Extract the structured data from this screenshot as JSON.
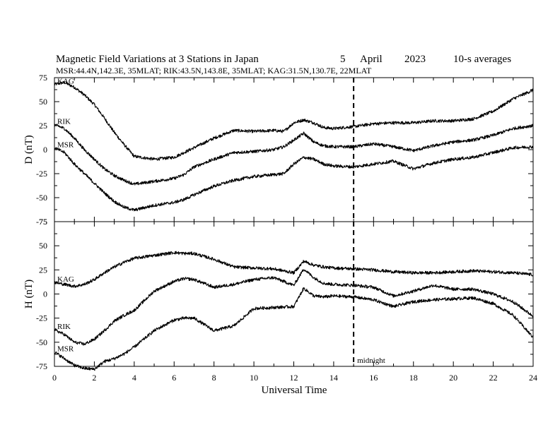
{
  "header": {
    "title_main": "Magnetic Field Variations at 3 Stations in Japan",
    "day": "5",
    "month": "April",
    "year": "2023",
    "averaging": "10-s averages",
    "stations_line": "MSR:44.4N,142.3E, 35MLAT;  RIK:43.5N,143.8E, 35MLAT;  KAG:31.5N,130.7E, 22MLAT"
  },
  "annotation": {
    "midnight_label": "midnight",
    "midnight_ut": 15
  },
  "chart_data": {
    "type": "line",
    "xlabel": "Universal Time",
    "xlim": [
      0,
      24
    ],
    "x_ticks": [
      "0",
      "2",
      "4",
      "6",
      "8",
      "10",
      "12",
      "14",
      "16",
      "18",
      "20",
      "22",
      "24"
    ],
    "panels": [
      {
        "ylabel": "D (nT)",
        "ylim": [
          -75,
          75
        ],
        "y_ticks": [
          "75",
          "50",
          "25",
          "0",
          "-25",
          "-50",
          "-75"
        ],
        "series": [
          {
            "name": "KAG",
            "x": [
              0,
              0.5,
              1,
              1.5,
              2,
              2.5,
              3,
              3.5,
              4,
              5,
              6,
              6.5,
              7,
              8,
              9,
              10,
              11,
              11.5,
              12,
              12.5,
              13,
              13.5,
              14,
              15,
              16,
              17,
              18,
              19,
              20,
              21,
              22,
              23,
              24
            ],
            "y": [
              68,
              70,
              65,
              57,
              47,
              33,
              18,
              5,
              -7,
              -10,
              -8,
              -3,
              2,
              12,
              20,
              19,
              20,
              19,
              28,
              31,
              28,
              23,
              22,
              24,
              27,
              28,
              28,
              30,
              30,
              32,
              40,
              53,
              62
            ]
          },
          {
            "name": "RIK",
            "x": [
              0,
              0.5,
              1,
              1.5,
              2,
              2.5,
              3,
              3.5,
              4,
              5,
              6,
              6.5,
              7,
              8,
              9,
              10,
              11,
              11.5,
              12,
              12.5,
              13,
              13.5,
              14,
              15,
              16,
              17,
              18,
              19,
              20,
              21,
              22,
              23,
              24
            ],
            "y": [
              26,
              22,
              12,
              0,
              -10,
              -20,
              -27,
              -32,
              -36,
              -33,
              -30,
              -26,
              -18,
              -10,
              -3,
              -2,
              0,
              3,
              10,
              17,
              8,
              4,
              3,
              3,
              6,
              3,
              -1,
              4,
              8,
              10,
              15,
              22,
              25
            ]
          },
          {
            "name": "MSR",
            "x": [
              0,
              0.5,
              1,
              1.5,
              2,
              2.5,
              3,
              3.5,
              4,
              5,
              6,
              6.5,
              7,
              8,
              9,
              10,
              11,
              11.5,
              12,
              12.5,
              13,
              13.5,
              14,
              15,
              16,
              17,
              18,
              19,
              20,
              21,
              22,
              23,
              24
            ],
            "y": [
              2,
              -3,
              -15,
              -25,
              -35,
              -45,
              -54,
              -60,
              -63,
              -58,
              -55,
              -52,
              -47,
              -38,
              -32,
              -28,
              -26,
              -25,
              -15,
              -8,
              -10,
              -15,
              -17,
              -18,
              -15,
              -12,
              -20,
              -14,
              -10,
              -8,
              -3,
              2,
              3
            ]
          }
        ]
      },
      {
        "ylabel": "H (nT)",
        "ylim": [
          -75,
          75
        ],
        "y_ticks": [
          "75",
          "50",
          "25",
          "0",
          "-25",
          "-50",
          "-75"
        ],
        "series": [
          {
            "name": "KAG",
            "x": [
              0,
              0.5,
              1,
              1.5,
              2,
              2.5,
              3,
              3.5,
              4,
              5,
              6,
              6.5,
              7,
              8,
              9,
              10,
              11,
              12,
              12.5,
              13,
              13.5,
              14,
              15,
              16,
              17,
              18,
              19,
              20,
              21,
              22,
              23,
              24
            ],
            "y": [
              12,
              10,
              8,
              10,
              15,
              22,
              28,
              33,
              37,
              40,
              43,
              42,
              42,
              36,
              28,
              27,
              26,
              22,
              34,
              30,
              28,
              27,
              26,
              25,
              23,
              22,
              22,
              23,
              24,
              23,
              22,
              20
            ]
          },
          {
            "name": "RIK",
            "x": [
              0,
              0.5,
              1,
              1.5,
              2,
              2.5,
              3,
              3.5,
              4,
              5,
              6,
              6.5,
              7,
              8,
              9,
              10,
              11,
              12,
              12.5,
              13,
              13.5,
              14,
              15,
              16,
              17,
              18,
              19,
              20,
              21,
              22,
              23,
              24
            ],
            "y": [
              -37,
              -42,
              -50,
              -52,
              -47,
              -38,
              -28,
              -22,
              -17,
              3,
              13,
              16,
              15,
              7,
              10,
              15,
              17,
              9,
              26,
              17,
              11,
              10,
              9,
              7,
              -2,
              3,
              9,
              5,
              5,
              0,
              -8,
              -23
            ]
          },
          {
            "name": "MSR",
            "x": [
              0,
              0.5,
              1,
              1.5,
              2,
              2.5,
              3,
              3.5,
              4,
              5,
              6,
              6.5,
              7,
              8,
              9,
              10,
              11,
              12,
              12.5,
              13,
              13.5,
              14,
              15,
              16,
              17,
              18,
              19,
              20,
              21,
              22,
              23,
              24
            ],
            "y": [
              -60,
              -67,
              -74,
              -77,
              -78,
              -70,
              -67,
              -62,
              -55,
              -38,
              -27,
              -25,
              -25,
              -38,
              -33,
              -15,
              -14,
              -13,
              6,
              -2,
              -3,
              -2,
              -3,
              -6,
              -13,
              -8,
              -6,
              -5,
              -4,
              -10,
              -22,
              -45
            ]
          }
        ]
      }
    ]
  }
}
